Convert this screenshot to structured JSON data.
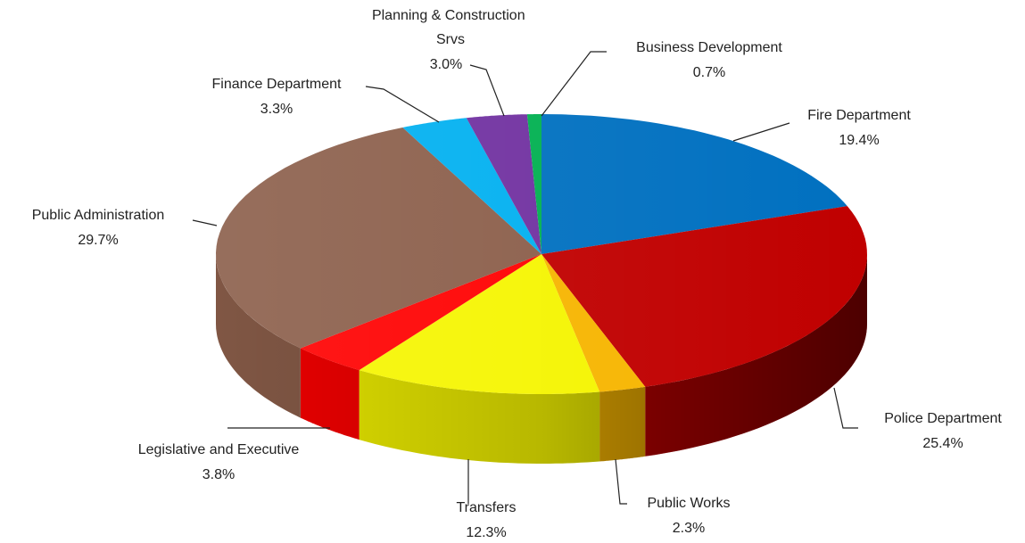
{
  "chart_data": {
    "type": "pie3d",
    "categories": [
      "Fire Department",
      "Police Department",
      "Public Works",
      "Transfers",
      "Legislative and Executive",
      "Public Administration",
      "Finance Department",
      "Planning & Construction Srvs",
      "Business Development"
    ],
    "values": [
      19.4,
      25.4,
      2.3,
      12.3,
      3.8,
      29.7,
      3.3,
      3.0,
      0.7
    ],
    "value_labels": [
      "19.4%",
      "25.4%",
      "2.3%",
      "12.3%",
      "3.8%",
      "29.7%",
      "3.3%",
      "3.0%",
      "0.7%"
    ],
    "colors": [
      "#0070c0",
      "#c00000",
      "#f7b500",
      "#f5f500",
      "#ff0000",
      "#8b5e4a",
      "#00b0f0",
      "#7030a0",
      "#00b050"
    ]
  }
}
